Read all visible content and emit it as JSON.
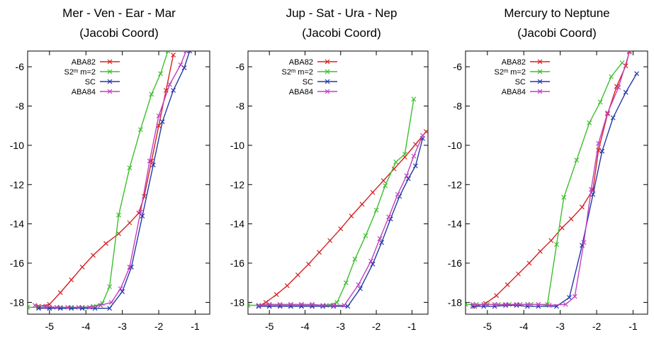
{
  "chart_data": [
    {
      "type": "line",
      "title": "Mer - Ven - Ear - Mar",
      "subtitle": "(Jacobi Coord)",
      "xlim": [
        -5.6,
        -0.6
      ],
      "ylim": [
        -18.6,
        -5.2
      ],
      "xticks": [
        -5,
        -4,
        -3,
        -2,
        -1
      ],
      "yticks": [
        -18,
        -16,
        -14,
        -12,
        -10,
        -8,
        -6
      ],
      "xtick_labels": [
        "-5",
        "-4",
        "-3",
        "-2",
        "-1"
      ],
      "ytick_labels": [
        "-18",
        "-16",
        "-14",
        "-12",
        "-10",
        "-8",
        "-6"
      ],
      "grid": false,
      "legend": "top-left",
      "series": [
        {
          "name": "ABA82",
          "color": "#d62020",
          "points": [
            [
              -5.3,
              -18.2
            ],
            [
              -5.0,
              -18.1
            ],
            [
              -4.7,
              -17.5
            ],
            [
              -4.4,
              -16.85
            ],
            [
              -4.1,
              -16.2
            ],
            [
              -3.8,
              -15.6
            ],
            [
              -3.45,
              -15.0
            ],
            [
              -3.1,
              -14.5
            ],
            [
              -2.8,
              -13.95
            ],
            [
              -2.55,
              -13.45
            ],
            [
              -2.4,
              -12.6
            ],
            [
              -2.2,
              -10.8
            ],
            [
              -2.0,
              -9.0
            ],
            [
              -1.8,
              -7.2
            ],
            [
              -1.6,
              -5.4
            ]
          ]
        },
        {
          "name": "S2ᵐ m=2",
          "color": "#3cbf2c",
          "points": [
            [
              -5.6,
              -18.25
            ],
            [
              -5.3,
              -18.25
            ],
            [
              -5.0,
              -18.25
            ],
            [
              -4.7,
              -18.25
            ],
            [
              -4.4,
              -18.25
            ],
            [
              -4.1,
              -18.25
            ],
            [
              -3.8,
              -18.2
            ],
            [
              -3.55,
              -18.05
            ],
            [
              -3.35,
              -17.2
            ],
            [
              -3.1,
              -13.55
            ],
            [
              -2.8,
              -11.15
            ],
            [
              -2.5,
              -9.2
            ],
            [
              -2.2,
              -7.4
            ],
            [
              -1.95,
              -6.35
            ],
            [
              -1.75,
              -5.2
            ]
          ]
        },
        {
          "name": "SC",
          "color": "#2438a8",
          "points": [
            [
              -5.3,
              -18.3
            ],
            [
              -5.0,
              -18.3
            ],
            [
              -4.7,
              -18.3
            ],
            [
              -4.4,
              -18.3
            ],
            [
              -4.1,
              -18.3
            ],
            [
              -3.75,
              -18.3
            ],
            [
              -3.35,
              -18.3
            ],
            [
              -3.0,
              -17.45
            ],
            [
              -2.75,
              -16.2
            ],
            [
              -2.45,
              -13.6
            ],
            [
              -2.15,
              -11.0
            ],
            [
              -1.9,
              -8.8
            ],
            [
              -1.6,
              -7.2
            ],
            [
              -1.3,
              -6.05
            ],
            [
              -1.15,
              -5.2
            ]
          ]
        },
        {
          "name": "ABA84",
          "color": "#c040c0",
          "points": [
            [
              -5.4,
              -18.15
            ],
            [
              -5.1,
              -18.2
            ],
            [
              -4.8,
              -18.25
            ],
            [
              -4.5,
              -18.25
            ],
            [
              -4.2,
              -18.25
            ],
            [
              -3.9,
              -18.25
            ],
            [
              -3.6,
              -18.15
            ],
            [
              -3.3,
              -18.0
            ],
            [
              -3.05,
              -17.3
            ],
            [
              -2.8,
              -16.2
            ],
            [
              -2.5,
              -13.4
            ],
            [
              -2.25,
              -10.8
            ],
            [
              -2.0,
              -8.5
            ],
            [
              -1.7,
              -6.9
            ],
            [
              -1.4,
              -5.9
            ],
            [
              -1.25,
              -5.2
            ]
          ]
        }
      ]
    },
    {
      "type": "line",
      "title": "Jup - Sat - Ura - Nep",
      "subtitle": "(Jacobi Coord)",
      "xlim": [
        -5.6,
        -0.55
      ],
      "ylim": [
        -18.6,
        -5.2
      ],
      "xticks": [
        -5,
        -4,
        -3,
        -2,
        -1
      ],
      "yticks": [
        -18,
        -16,
        -14,
        -12,
        -10,
        -8,
        -6
      ],
      "xtick_labels": [
        "-5",
        "-4",
        "-3",
        "-2",
        "-1"
      ],
      "ytick_labels": [
        "-18",
        "-16",
        "-14",
        "-12",
        "-10",
        "-8",
        "-6"
      ],
      "grid": false,
      "legend": "top-left",
      "series": [
        {
          "name": "ABA82",
          "color": "#d62020",
          "points": [
            [
              -5.3,
              -18.2
            ],
            [
              -5.1,
              -18.0
            ],
            [
              -4.8,
              -17.6
            ],
            [
              -4.5,
              -17.15
            ],
            [
              -4.2,
              -16.6
            ],
            [
              -3.9,
              -16.05
            ],
            [
              -3.6,
              -15.45
            ],
            [
              -3.3,
              -14.85
            ],
            [
              -3.0,
              -14.25
            ],
            [
              -2.7,
              -13.6
            ],
            [
              -2.4,
              -13.0
            ],
            [
              -2.1,
              -12.4
            ],
            [
              -1.8,
              -11.8
            ],
            [
              -1.5,
              -11.2
            ],
            [
              -1.2,
              -10.6
            ],
            [
              -0.9,
              -9.95
            ],
            [
              -0.6,
              -9.3
            ]
          ]
        },
        {
          "name": "S2ᵐ m=2",
          "color": "#3cbf2c",
          "points": [
            [
              -5.6,
              -18.15
            ],
            [
              -5.3,
              -18.15
            ],
            [
              -5.0,
              -18.15
            ],
            [
              -4.7,
              -18.15
            ],
            [
              -4.4,
              -18.15
            ],
            [
              -4.1,
              -18.15
            ],
            [
              -3.8,
              -18.15
            ],
            [
              -3.4,
              -18.15
            ],
            [
              -3.1,
              -18.0
            ],
            [
              -2.85,
              -17.0
            ],
            [
              -2.6,
              -15.8
            ],
            [
              -2.3,
              -14.6
            ],
            [
              -2.0,
              -13.3
            ],
            [
              -1.75,
              -12.05
            ],
            [
              -1.45,
              -10.85
            ],
            [
              -1.2,
              -10.45
            ],
            [
              -0.95,
              -7.65
            ]
          ]
        },
        {
          "name": "SC",
          "color": "#2438a8",
          "points": [
            [
              -5.3,
              -18.2
            ],
            [
              -5.0,
              -18.2
            ],
            [
              -4.7,
              -18.2
            ],
            [
              -4.4,
              -18.2
            ],
            [
              -4.1,
              -18.2
            ],
            [
              -3.8,
              -18.2
            ],
            [
              -3.5,
              -18.2
            ],
            [
              -3.2,
              -18.2
            ],
            [
              -2.8,
              -18.2
            ],
            [
              -2.45,
              -17.3
            ],
            [
              -2.1,
              -16.05
            ],
            [
              -1.85,
              -14.95
            ],
            [
              -1.6,
              -13.75
            ],
            [
              -1.35,
              -12.6
            ],
            [
              -1.1,
              -11.7
            ],
            [
              -0.9,
              -11.05
            ],
            [
              -0.7,
              -9.65
            ]
          ]
        },
        {
          "name": "ABA84",
          "color": "#c040c0",
          "points": [
            [
              -5.3,
              -18.15
            ],
            [
              -5.0,
              -18.1
            ],
            [
              -4.7,
              -18.1
            ],
            [
              -4.4,
              -18.1
            ],
            [
              -4.1,
              -18.1
            ],
            [
              -3.8,
              -18.1
            ],
            [
              -3.5,
              -18.15
            ],
            [
              -3.2,
              -18.15
            ],
            [
              -2.9,
              -18.15
            ],
            [
              -2.5,
              -17.1
            ],
            [
              -2.15,
              -15.9
            ],
            [
              -1.9,
              -14.75
            ],
            [
              -1.65,
              -13.65
            ],
            [
              -1.4,
              -12.5
            ],
            [
              -1.15,
              -11.55
            ],
            [
              -0.95,
              -10.55
            ],
            [
              -0.7,
              -9.5
            ]
          ]
        }
      ]
    },
    {
      "type": "line",
      "title": "Mercury to Neptune",
      "subtitle": "(Jacobi Coord)",
      "xlim": [
        -5.6,
        -0.6
      ],
      "ylim": [
        -18.6,
        -5.2
      ],
      "xticks": [
        -5,
        -4,
        -3,
        -2,
        -1
      ],
      "yticks": [
        -18,
        -16,
        -14,
        -12,
        -10,
        -8,
        -6
      ],
      "xtick_labels": [
        "-5",
        "-4",
        "-3",
        "-2",
        "-1"
      ],
      "ytick_labels": [
        "-18",
        "-16",
        "-14",
        "-12",
        "-10",
        "-8",
        "-6"
      ],
      "grid": false,
      "legend": "top-right",
      "series": [
        {
          "name": "ABA82",
          "color": "#d62020",
          "points": [
            [
              -5.35,
              -18.2
            ],
            [
              -5.05,
              -18.05
            ],
            [
              -4.75,
              -17.65
            ],
            [
              -4.45,
              -17.1
            ],
            [
              -4.15,
              -16.55
            ],
            [
              -3.85,
              -16.0
            ],
            [
              -3.55,
              -15.4
            ],
            [
              -3.25,
              -14.85
            ],
            [
              -2.95,
              -14.2
            ],
            [
              -2.7,
              -13.75
            ],
            [
              -2.4,
              -13.15
            ],
            [
              -2.1,
              -12.25
            ],
            [
              -1.95,
              -10.25
            ],
            [
              -1.7,
              -8.4
            ],
            [
              -1.45,
              -7.0
            ],
            [
              -1.2,
              -5.95
            ],
            [
              -1.1,
              -5.2
            ]
          ]
        },
        {
          "name": "S2ᵐ m=2",
          "color": "#3cbf2c",
          "points": [
            [
              -5.6,
              -18.1
            ],
            [
              -5.3,
              -18.1
            ],
            [
              -5.0,
              -18.1
            ],
            [
              -4.7,
              -18.1
            ],
            [
              -4.4,
              -18.1
            ],
            [
              -4.1,
              -18.1
            ],
            [
              -3.8,
              -18.1
            ],
            [
              -3.35,
              -18.1
            ],
            [
              -3.1,
              -15.05
            ],
            [
              -2.9,
              -12.65
            ],
            [
              -2.55,
              -10.75
            ],
            [
              -2.2,
              -8.85
            ],
            [
              -1.9,
              -7.8
            ],
            [
              -1.6,
              -6.5
            ],
            [
              -1.3,
              -5.8
            ]
          ]
        },
        {
          "name": "SC",
          "color": "#2438a8",
          "points": [
            [
              -5.4,
              -18.2
            ],
            [
              -5.1,
              -18.2
            ],
            [
              -4.8,
              -18.2
            ],
            [
              -4.5,
              -18.15
            ],
            [
              -4.2,
              -18.15
            ],
            [
              -3.9,
              -18.2
            ],
            [
              -3.6,
              -18.2
            ],
            [
              -3.1,
              -18.2
            ],
            [
              -2.75,
              -17.75
            ],
            [
              -2.4,
              -15.1
            ],
            [
              -2.1,
              -12.5
            ],
            [
              -1.85,
              -10.3
            ],
            [
              -1.55,
              -8.6
            ],
            [
              -1.2,
              -7.3
            ],
            [
              -0.9,
              -6.35
            ]
          ]
        },
        {
          "name": "ABA84",
          "color": "#c040c0",
          "points": [
            [
              -5.4,
              -18.1
            ],
            [
              -5.1,
              -18.1
            ],
            [
              -4.8,
              -18.1
            ],
            [
              -4.5,
              -18.1
            ],
            [
              -4.2,
              -18.1
            ],
            [
              -3.9,
              -18.1
            ],
            [
              -3.6,
              -18.1
            ],
            [
              -3.3,
              -18.15
            ],
            [
              -2.85,
              -18.1
            ],
            [
              -2.6,
              -17.7
            ],
            [
              -2.35,
              -14.95
            ],
            [
              -2.15,
              -12.25
            ],
            [
              -1.95,
              -9.9
            ],
            [
              -1.7,
              -8.35
            ],
            [
              -1.4,
              -7.05
            ],
            [
              -1.1,
              -5.25
            ]
          ]
        }
      ]
    }
  ]
}
